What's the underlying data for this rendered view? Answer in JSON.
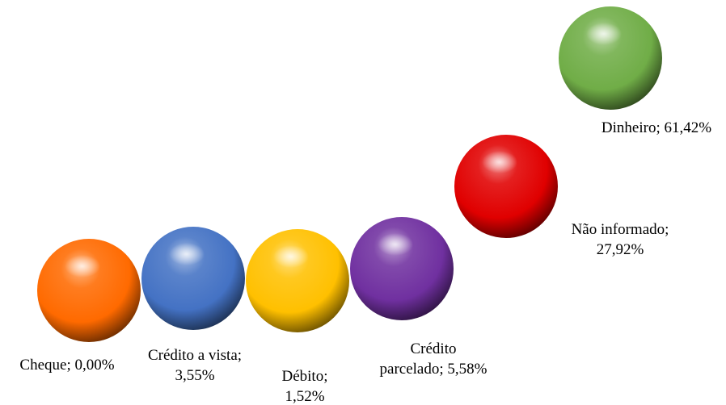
{
  "chart_data": {
    "type": "bubble",
    "title": "",
    "xlabel": "",
    "ylabel": "",
    "legend": "none",
    "grid": false,
    "points": [
      {
        "category": "Cheque",
        "value": 0.0,
        "label": "Cheque; 0,00%",
        "color": "#ff6a00"
      },
      {
        "category": "Crédito a vista",
        "value": 3.55,
        "label": "Crédito a vista; 3,55%",
        "color": "#4472c4"
      },
      {
        "category": "Débito",
        "value": 1.52,
        "label": "Débito; 1,52%",
        "color": "#ffc000"
      },
      {
        "category": "Crédito parcelado",
        "value": 5.58,
        "label": "Crédito parcelado; 5,58%",
        "color": "#7030a0"
      },
      {
        "category": "Não informado",
        "value": 27.92,
        "label": "Não informado; 27,92%",
        "color": "#e00000"
      },
      {
        "category": "Dinheiro",
        "value": 61.42,
        "label": "Dinheiro; 61,42%",
        "color": "#70ad47"
      }
    ],
    "label_lines": [
      [
        "Cheque; 0,00%"
      ],
      [
        "Crédito a vista;",
        "3,55%"
      ],
      [
        "Débito;",
        "1,52%"
      ],
      [
        "Crédito",
        "parcelado; 5,58%"
      ],
      [
        "Não informado;",
        "27,92%"
      ],
      [
        "Dinheiro; 61,42%"
      ]
    ]
  }
}
